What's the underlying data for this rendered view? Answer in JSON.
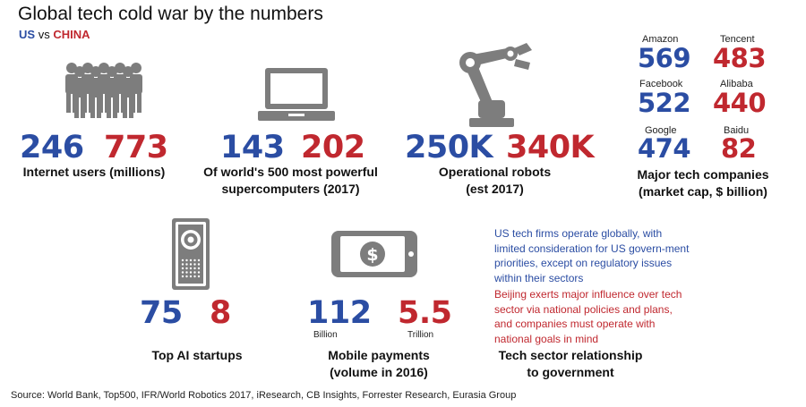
{
  "header": {
    "title": "Global tech cold war by the numbers",
    "legend_us": "US",
    "legend_vs": "vs",
    "legend_china": "CHINA"
  },
  "colors": {
    "us": "#2b4da3",
    "china": "#c0282f",
    "icon": "#7d7d7d"
  },
  "chart_data": {
    "type": "table",
    "title": "Global tech cold war by the numbers",
    "series": [
      {
        "name": "US",
        "color": "#2b4da3"
      },
      {
        "name": "CHINA",
        "color": "#c0282f"
      }
    ],
    "metrics": [
      {
        "icon": "people-icon",
        "label": "Internet users (millions)",
        "us": "246",
        "china": "773"
      },
      {
        "icon": "laptop-icon",
        "label_line1": "Of world's 500 most powerful",
        "label_line2": "supercomputers (2017)",
        "us": "143",
        "china": "202"
      },
      {
        "icon": "robot-arm-icon",
        "label_line1": "Operational robots",
        "label_line2": "(est 2017)",
        "us": "250K",
        "china": "340K"
      },
      {
        "icon": "ai-device-icon",
        "label": "Top AI startups",
        "us": "75",
        "china": "8"
      },
      {
        "icon": "mobile-payment-icon",
        "label_line1": "Mobile payments",
        "label_line2": "(volume in 2016)",
        "us": "112",
        "us_unit": "Billion",
        "china": "5.5",
        "china_unit": "Trillion"
      }
    ],
    "companies": {
      "label_line1": "Major tech companies",
      "label_line2": "(market cap, $ billion)",
      "us": [
        {
          "name": "Amazon",
          "value": "569"
        },
        {
          "name": "Facebook",
          "value": "522"
        },
        {
          "name": "Google",
          "value": "474"
        }
      ],
      "china": [
        {
          "name": "Tencent",
          "value": "483"
        },
        {
          "name": "Alibaba",
          "value": "440"
        },
        {
          "name": "Baidu",
          "value": "82"
        }
      ]
    },
    "relationship": {
      "us_text": "US tech firms operate globally, with limited consideration for US govern-ment priorities, except on regulatory issues within their sectors",
      "china_text": "Beijing exerts major influence over tech sector via national policies and plans, and companies must operate with national goals in mind",
      "label_line1": "Tech sector relationship",
      "label_line2": "to government"
    }
  },
  "source": "Source: World Bank, Top500, IFR/World Robotics 2017, iResearch, CB Insights, Forrester Research, Eurasia Group"
}
